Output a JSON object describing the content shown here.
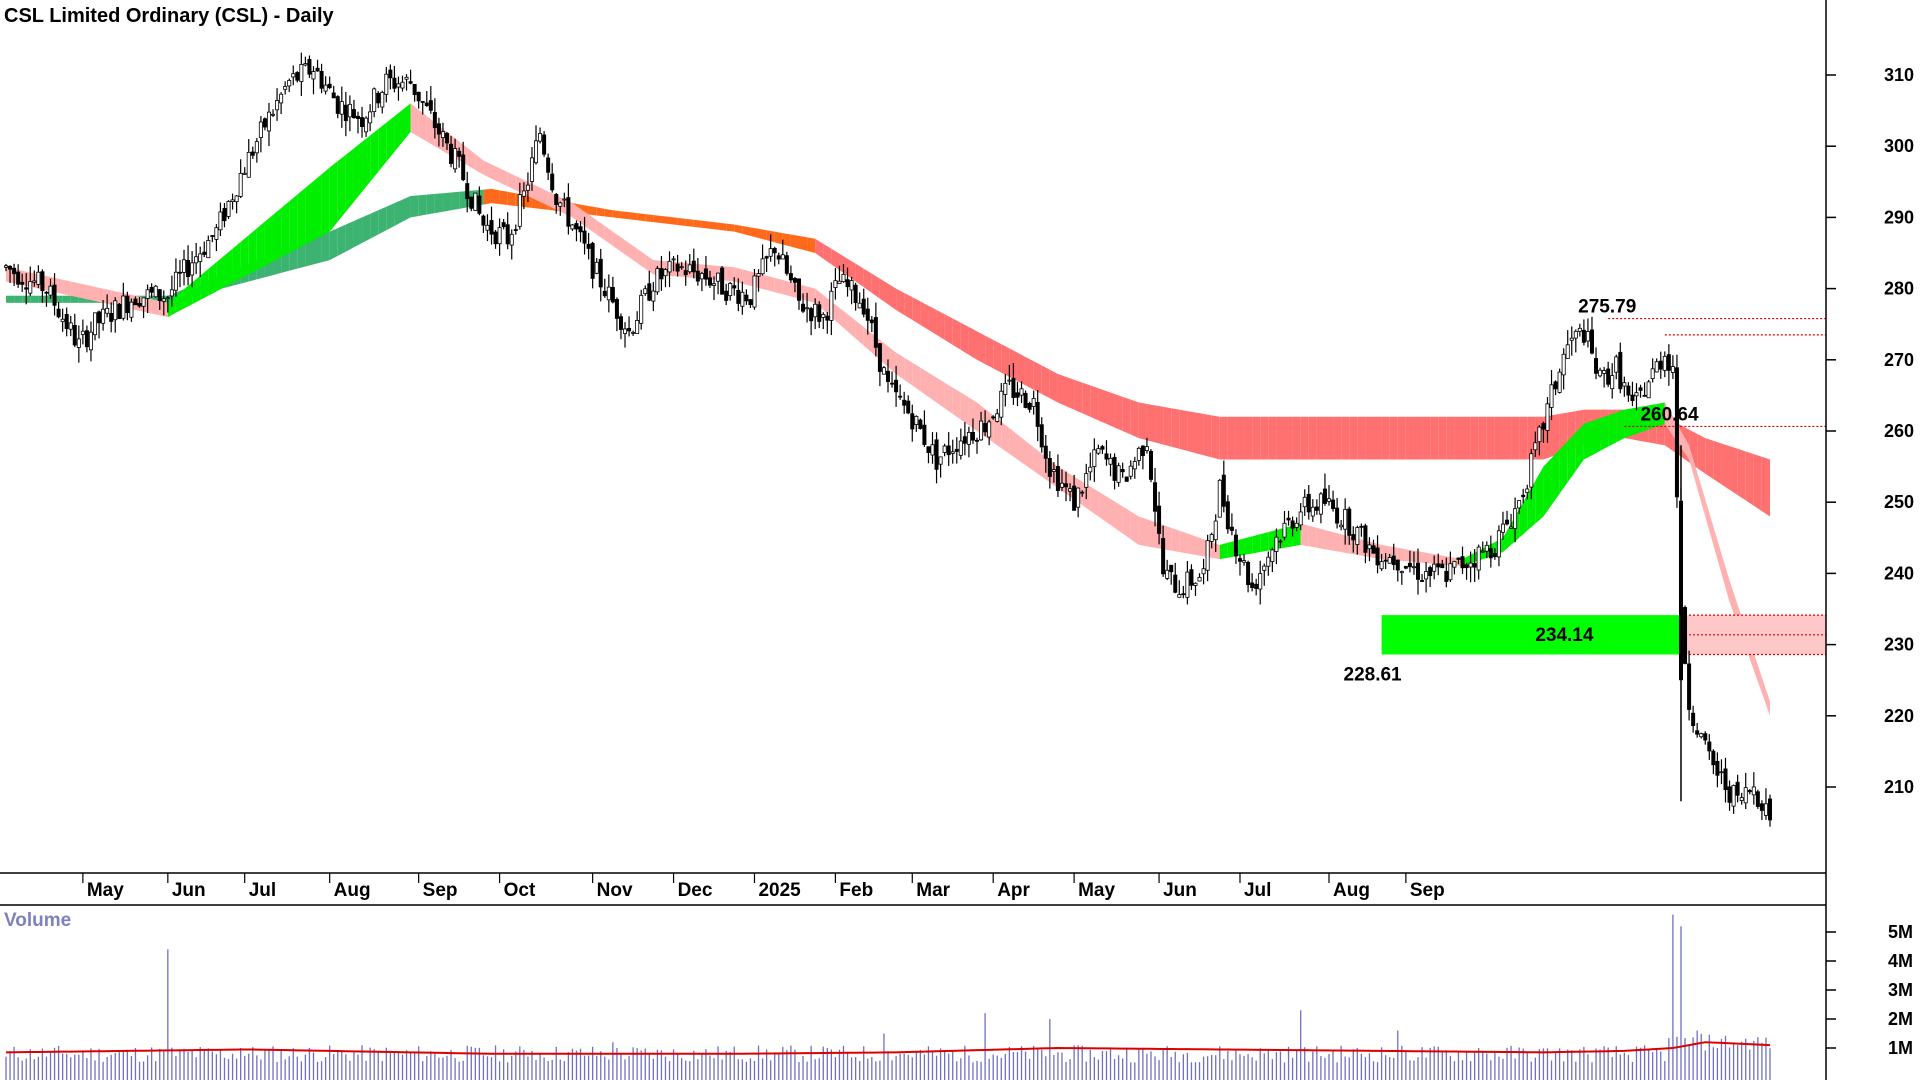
{
  "chart_data": {
    "type": "candlestick",
    "title": "CSL Limited Ordinary (CSL) - Daily",
    "price_axis": {
      "ticks": [
        210,
        220,
        230,
        240,
        250,
        260,
        270,
        280,
        290,
        300,
        310
      ],
      "range": [
        203,
        317
      ]
    },
    "months": [
      "May",
      "Jun",
      "Jul",
      "Aug",
      "Sep",
      "Oct",
      "Nov",
      "Dec",
      "2025",
      "Feb",
      "Mar",
      "Apr",
      "May",
      "Jun",
      "Jul",
      "Aug",
      "Sep"
    ],
    "price_path": [
      [
        0,
        283
      ],
      [
        10,
        280
      ],
      [
        18,
        272
      ],
      [
        22,
        275
      ],
      [
        32,
        279
      ],
      [
        40,
        279
      ],
      [
        46,
        284
      ],
      [
        52,
        288
      ],
      [
        58,
        296
      ],
      [
        64,
        303
      ],
      [
        70,
        309
      ],
      [
        76,
        311
      ],
      [
        82,
        306
      ],
      [
        88,
        304
      ],
      [
        94,
        309
      ],
      [
        100,
        309
      ],
      [
        106,
        303
      ],
      [
        112,
        297
      ],
      [
        118,
        289
      ],
      [
        124,
        287
      ],
      [
        128,
        293
      ],
      [
        132,
        302
      ],
      [
        136,
        293
      ],
      [
        140,
        289
      ],
      [
        146,
        282
      ],
      [
        150,
        278
      ],
      [
        154,
        274
      ],
      [
        160,
        281
      ],
      [
        166,
        283
      ],
      [
        172,
        282
      ],
      [
        178,
        280
      ],
      [
        184,
        279
      ],
      [
        190,
        286
      ],
      [
        196,
        278
      ],
      [
        202,
        276
      ],
      [
        206,
        281
      ],
      [
        212,
        278
      ],
      [
        218,
        266
      ],
      [
        224,
        262
      ],
      [
        230,
        256
      ],
      [
        236,
        259
      ],
      [
        242,
        261
      ],
      [
        248,
        266
      ],
      [
        254,
        264
      ],
      [
        258,
        255
      ],
      [
        264,
        250
      ],
      [
        270,
        257
      ],
      [
        276,
        253
      ],
      [
        282,
        259
      ],
      [
        286,
        240
      ],
      [
        290,
        238
      ],
      [
        296,
        240
      ],
      [
        300,
        252
      ],
      [
        304,
        244
      ],
      [
        308,
        238
      ],
      [
        314,
        245
      ],
      [
        320,
        249
      ],
      [
        326,
        250
      ],
      [
        332,
        247
      ],
      [
        338,
        243
      ],
      [
        344,
        242
      ],
      [
        350,
        240
      ],
      [
        356,
        240
      ],
      [
        362,
        242
      ],
      [
        368,
        244
      ],
      [
        374,
        250
      ],
      [
        378,
        257
      ],
      [
        382,
        265
      ],
      [
        386,
        272
      ],
      [
        390,
        274
      ],
      [
        394,
        267
      ],
      [
        398,
        269
      ],
      [
        402,
        263
      ],
      [
        406,
        267
      ],
      [
        410,
        271
      ],
      [
        412,
        269
      ],
      [
        414,
        234
      ],
      [
        416,
        222
      ],
      [
        420,
        215
      ],
      [
        424,
        211
      ],
      [
        428,
        208
      ],
      [
        432,
        210
      ],
      [
        436,
        206
      ]
    ],
    "moving_average_bands": [
      {
        "name": "short-term",
        "upper": [
          [
            0,
            283
          ],
          [
            40,
            278
          ],
          [
            80,
            297
          ],
          [
            100,
            306
          ],
          [
            118,
            298
          ],
          [
            140,
            292
          ],
          [
            160,
            284
          ],
          [
            180,
            283
          ],
          [
            200,
            280
          ],
          [
            220,
            271
          ],
          [
            240,
            264
          ],
          [
            260,
            255
          ],
          [
            280,
            248
          ],
          [
            300,
            244
          ],
          [
            320,
            247
          ],
          [
            340,
            244
          ],
          [
            360,
            242
          ],
          [
            370,
            245
          ],
          [
            380,
            255
          ],
          [
            390,
            261
          ],
          [
            400,
            263
          ],
          [
            410,
            264
          ],
          [
            416,
            258
          ],
          [
            426,
            239
          ],
          [
            436,
            222
          ]
        ],
        "lower": [
          [
            0,
            281
          ],
          [
            40,
            276
          ],
          [
            80,
            288
          ],
          [
            100,
            302
          ],
          [
            118,
            296
          ],
          [
            140,
            290
          ],
          [
            160,
            282
          ],
          [
            180,
            281
          ],
          [
            200,
            278
          ],
          [
            220,
            268
          ],
          [
            240,
            260
          ],
          [
            260,
            252
          ],
          [
            280,
            244
          ],
          [
            300,
            242
          ],
          [
            320,
            244
          ],
          [
            340,
            242
          ],
          [
            360,
            241
          ],
          [
            370,
            243
          ],
          [
            380,
            248
          ],
          [
            390,
            256
          ],
          [
            400,
            259
          ],
          [
            410,
            261
          ],
          [
            416,
            256
          ],
          [
            426,
            236
          ],
          [
            436,
            220
          ]
        ]
      },
      {
        "name": "long-term",
        "upper": [
          [
            0,
            279
          ],
          [
            40,
            279
          ],
          [
            80,
            288
          ],
          [
            100,
            293
          ],
          [
            120,
            294
          ],
          [
            150,
            291
          ],
          [
            180,
            289
          ],
          [
            200,
            287
          ],
          [
            220,
            280
          ],
          [
            240,
            274
          ],
          [
            260,
            268
          ],
          [
            280,
            264
          ],
          [
            300,
            262
          ],
          [
            320,
            262
          ],
          [
            340,
            262
          ],
          [
            360,
            262
          ],
          [
            380,
            262
          ],
          [
            390,
            263
          ],
          [
            400,
            263
          ],
          [
            410,
            262
          ],
          [
            420,
            259
          ],
          [
            436,
            256
          ]
        ],
        "lower": [
          [
            0,
            278
          ],
          [
            40,
            278
          ],
          [
            80,
            284
          ],
          [
            100,
            290
          ],
          [
            120,
            292
          ],
          [
            150,
            290
          ],
          [
            180,
            288
          ],
          [
            200,
            285
          ],
          [
            220,
            277
          ],
          [
            240,
            270
          ],
          [
            260,
            264
          ],
          [
            280,
            259
          ],
          [
            300,
            256
          ],
          [
            320,
            256
          ],
          [
            340,
            256
          ],
          [
            360,
            256
          ],
          [
            380,
            256
          ],
          [
            390,
            258
          ],
          [
            400,
            259
          ],
          [
            410,
            258
          ],
          [
            420,
            254
          ],
          [
            436,
            248
          ]
        ]
      }
    ],
    "annotations": [
      {
        "label": "275.79",
        "value": 275.79
      },
      {
        "label": "260.64",
        "value": 260.64
      },
      {
        "label": "234.14",
        "value": 234.14
      },
      {
        "label": "228.61",
        "value": 228.61
      }
    ],
    "support_zone": {
      "low": 228.61,
      "high": 234.14
    },
    "resistance_zone": {
      "low": 228.61,
      "high": 234.14
    },
    "volume": {
      "title": "Volume",
      "ticks": [
        "1M",
        "2M",
        "3M",
        "4M",
        "5M"
      ],
      "tick_values": [
        1,
        2,
        3,
        4,
        5
      ],
      "range": [
        0,
        5.6
      ],
      "spikes": [
        [
          0,
          0.7
        ],
        [
          15,
          0.8
        ],
        [
          40,
          4.4
        ],
        [
          58,
          1.0
        ],
        [
          130,
          0.9
        ],
        [
          150,
          1.2
        ],
        [
          217,
          1.5
        ],
        [
          242,
          2.2
        ],
        [
          258,
          2.0
        ],
        [
          320,
          2.3
        ],
        [
          344,
          1.6
        ],
        [
          364,
          1.0
        ],
        [
          412,
          5.6
        ],
        [
          414,
          5.2
        ],
        [
          418,
          1.6
        ]
      ],
      "average_line": [
        [
          0,
          0.85
        ],
        [
          60,
          0.95
        ],
        [
          120,
          0.8
        ],
        [
          180,
          0.8
        ],
        [
          220,
          0.85
        ],
        [
          260,
          1.0
        ],
        [
          300,
          0.95
        ],
        [
          340,
          0.9
        ],
        [
          380,
          0.85
        ],
        [
          400,
          0.9
        ],
        [
          412,
          1.0
        ],
        [
          420,
          1.2
        ],
        [
          436,
          1.1
        ]
      ]
    }
  },
  "colors": {
    "green_bright": "#00ee00",
    "green_dark": "#3cb371",
    "orange": "#ff6a1a",
    "pink_light": "#ffb0b0",
    "red_band": "#ff7070",
    "support": "#00ff00",
    "resistance_fill": "#ffc8c8",
    "resistance_line": "#dd0000",
    "candle": "#000000",
    "volume_bar": "#7070c0",
    "volume_avg": "#dd0000",
    "axis": "#000000",
    "volume_title": "#8080c0"
  }
}
